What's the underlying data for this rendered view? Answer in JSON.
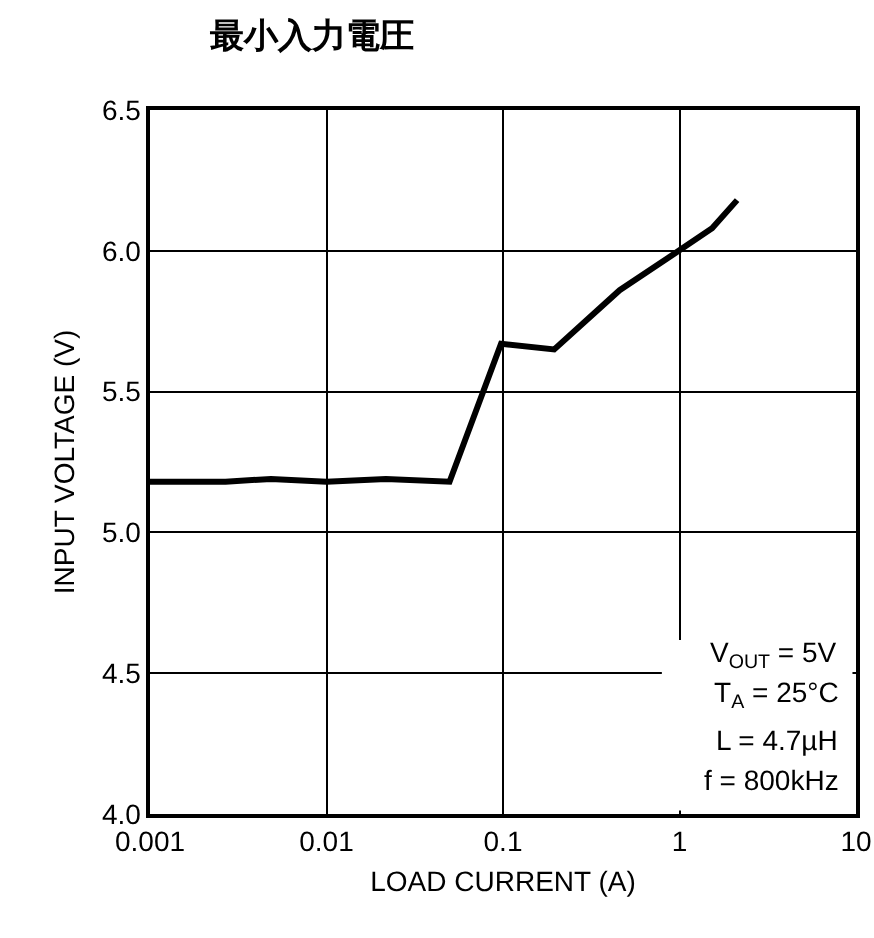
{
  "chart_data": {
    "type": "line",
    "title": "最小入力電圧",
    "xlabel": "LOAD CURRENT (A)",
    "ylabel": "INPUT VOLTAGE (V)",
    "x": [
      0.001,
      0.00268,
      0.00485,
      0.01,
      0.0217,
      0.0498,
      0.0975,
      0.195,
      0.458,
      0.99,
      1.53,
      2.12
    ],
    "series": [
      {
        "color": "#000000",
        "values": [
          5.18,
          5.18,
          5.19,
          5.18,
          5.19,
          5.18,
          5.67,
          5.65,
          5.86,
          6.0,
          6.08,
          6.18
        ]
      }
    ],
    "log": "x",
    "xlim": [
      0.001,
      10
    ],
    "xticks": [
      0.001,
      0.01,
      0.1,
      1,
      10
    ],
    "ylim": [
      4.0,
      6.5
    ],
    "yticks": [
      {
        "value": 4.0,
        "label": "4.0"
      },
      {
        "value": 4.5,
        "label": "4.5"
      },
      {
        "value": 5.0,
        "label": "5.0"
      },
      {
        "value": 5.5,
        "label": "5.5"
      },
      {
        "value": 6.0,
        "label": "6.0"
      },
      {
        "value": 6.5,
        "label": "6.5"
      }
    ],
    "grid": true,
    "marker": "none",
    "line_style": "solid",
    "annotations": [
      "V$_{OUT}$ = 5V",
      "T$_{A}$ = 25°C",
      "L = 4.7µH",
      "f = 800kHz"
    ]
  }
}
